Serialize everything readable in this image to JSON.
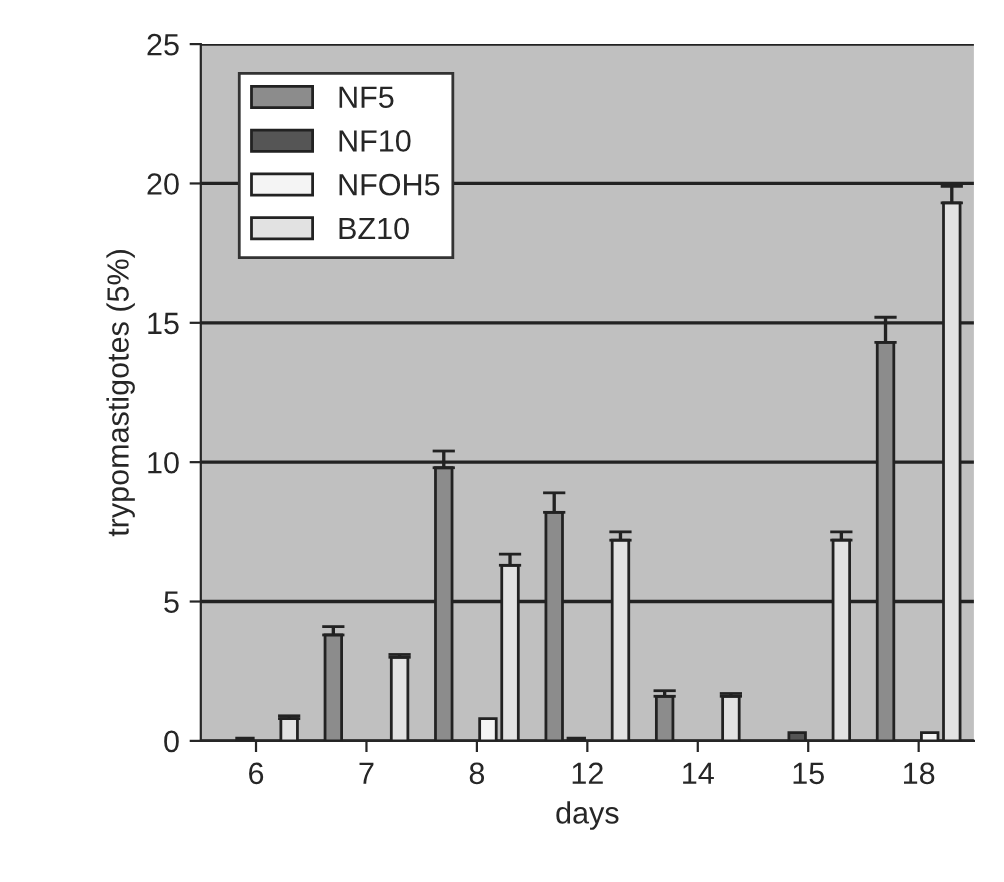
{
  "chart_data": {
    "type": "bar",
    "xlabel": "days",
    "ylabel": "trypomastigotes (5%)",
    "categories": [
      "6",
      "7",
      "8",
      "12",
      "14",
      "15",
      "18"
    ],
    "series": [
      {
        "name": "NF5",
        "color": "#8c8c8c",
        "values": [
          null,
          3.8,
          9.8,
          8.2,
          1.6,
          null,
          14.3
        ],
        "errors": [
          null,
          0.3,
          0.6,
          0.7,
          0.2,
          null,
          0.9
        ]
      },
      {
        "name": "NF10",
        "color": "#555555",
        "values": [
          0.1,
          null,
          null,
          0.1,
          null,
          0.3,
          null
        ]
      },
      {
        "name": "NFOH5",
        "color": "#f4f4f4",
        "values": [
          null,
          null,
          0.8,
          null,
          null,
          null,
          0.3
        ]
      },
      {
        "name": "BZ10",
        "color": "#e2e2e2",
        "values": [
          0.8,
          3.0,
          6.3,
          7.2,
          1.6,
          7.2,
          19.3
        ],
        "errors": [
          0.1,
          0.1,
          0.4,
          0.3,
          0.1,
          0.3,
          0.6
        ]
      }
    ],
    "ylim": [
      0,
      25
    ],
    "yticks": [
      0,
      5,
      10,
      15,
      20,
      25
    ],
    "grid": "y",
    "legend": "top left"
  }
}
